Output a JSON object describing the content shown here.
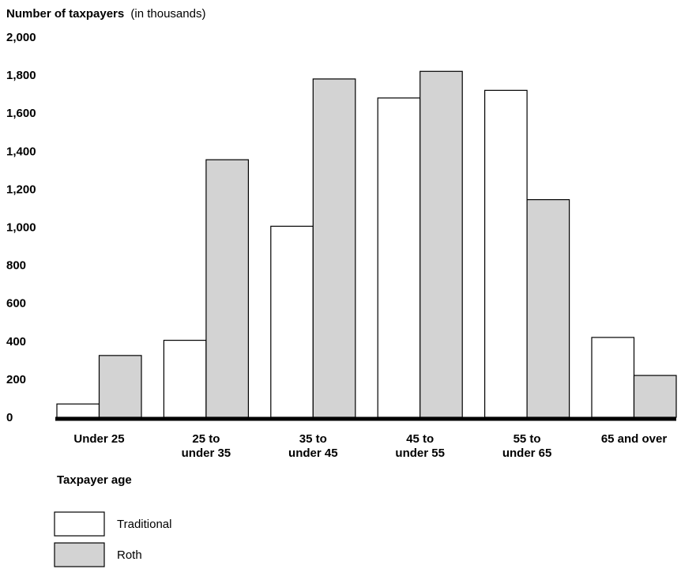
{
  "chart_data": {
    "type": "bar",
    "title": "Number of taxpayers",
    "title_note": "(in thousands)",
    "xlabel": "Taxpayer age",
    "categories": [
      [
        "Under 25"
      ],
      [
        "25 to",
        "under 35"
      ],
      [
        "35 to",
        "under 45"
      ],
      [
        "45 to",
        "under 55"
      ],
      [
        "55 to",
        "under 65"
      ],
      [
        "65 and over"
      ]
    ],
    "series": [
      {
        "name": "Traditional",
        "values": [
          70,
          405,
          1005,
          1680,
          1720,
          420
        ],
        "color": "#ffffff"
      },
      {
        "name": "Roth",
        "values": [
          325,
          1355,
          1780,
          1820,
          1145,
          220
        ],
        "color": "#d3d3d3"
      }
    ],
    "ylim": [
      0,
      2000
    ],
    "yticks": [
      "0",
      "200",
      "400",
      "600",
      "800",
      "1,000",
      "1,200",
      "1,400",
      "1,600",
      "1,800",
      "2,000"
    ],
    "ytick_values": [
      0,
      200,
      400,
      600,
      800,
      1000,
      1200,
      1400,
      1600,
      1800,
      2000
    ],
    "grid": false,
    "legend_position": "bottom-left"
  }
}
